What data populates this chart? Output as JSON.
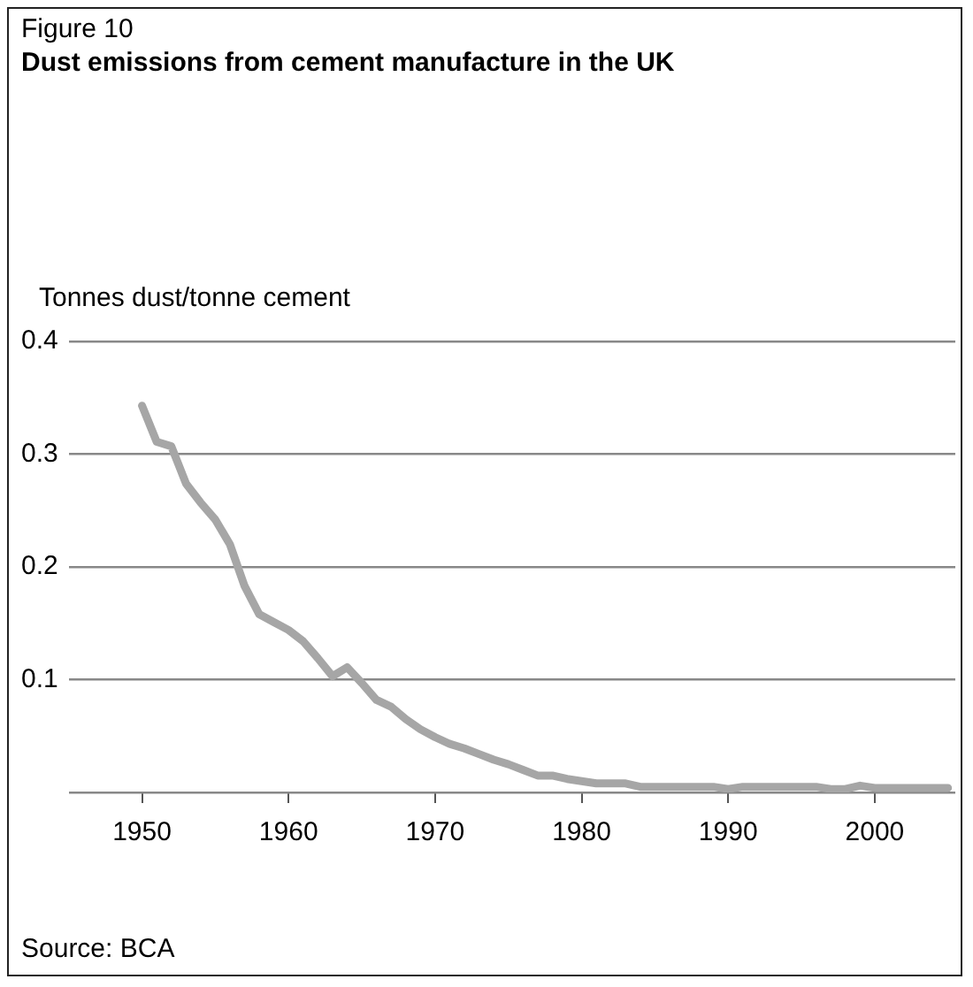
{
  "chart_data": {
    "type": "line",
    "title": "Dust emissions from cement manufacture in the UK",
    "subtitle": "Figure 10",
    "ylabel": "Tonnes dust/tonne cement",
    "annotations": [
      "Source: BCA"
    ],
    "x": [
      1950,
      1951,
      1952,
      1953,
      1954,
      1955,
      1956,
      1957,
      1958,
      1959,
      1960,
      1961,
      1962,
      1963,
      1964,
      1965,
      1966,
      1967,
      1968,
      1969,
      1970,
      1971,
      1972,
      1973,
      1974,
      1975,
      1976,
      1977,
      1978,
      1979,
      1980,
      1981,
      1982,
      1983,
      1984,
      1985,
      1986,
      1987,
      1988,
      1989,
      1990,
      1991,
      1992,
      1993,
      1994,
      1995,
      1996,
      1997,
      1998,
      1999,
      2000,
      2001,
      2002,
      2003,
      2004,
      2005
    ],
    "series": [
      {
        "color": "#a6a6a6",
        "values": [
          0.343,
          0.311,
          0.307,
          0.274,
          0.257,
          0.242,
          0.22,
          0.183,
          0.158,
          0.151,
          0.144,
          0.134,
          0.119,
          0.103,
          0.111,
          0.097,
          0.082,
          0.076,
          0.065,
          0.056,
          0.049,
          0.043,
          0.039,
          0.034,
          0.029,
          0.025,
          0.02,
          0.015,
          0.015,
          0.012,
          0.01,
          0.008,
          0.008,
          0.008,
          0.005,
          0.005,
          0.005,
          0.005,
          0.005,
          0.005,
          0.003,
          0.005,
          0.005,
          0.005,
          0.005,
          0.005,
          0.005,
          0.003,
          0.003,
          0.006,
          0.004,
          0.004,
          0.004,
          0.004,
          0.004,
          0.004
        ]
      }
    ],
    "xlim": [
      1945,
      2005.5
    ],
    "xticks": [
      1950,
      1960,
      1970,
      1980,
      1990,
      2000
    ],
    "ylim": [
      0,
      0.4
    ],
    "yticks": [
      {
        "value": 0,
        "label": null
      },
      0.1,
      0.2,
      0.3,
      0.4
    ],
    "grid": "y",
    "legend": false,
    "marker": "none",
    "line_style": "solid"
  }
}
